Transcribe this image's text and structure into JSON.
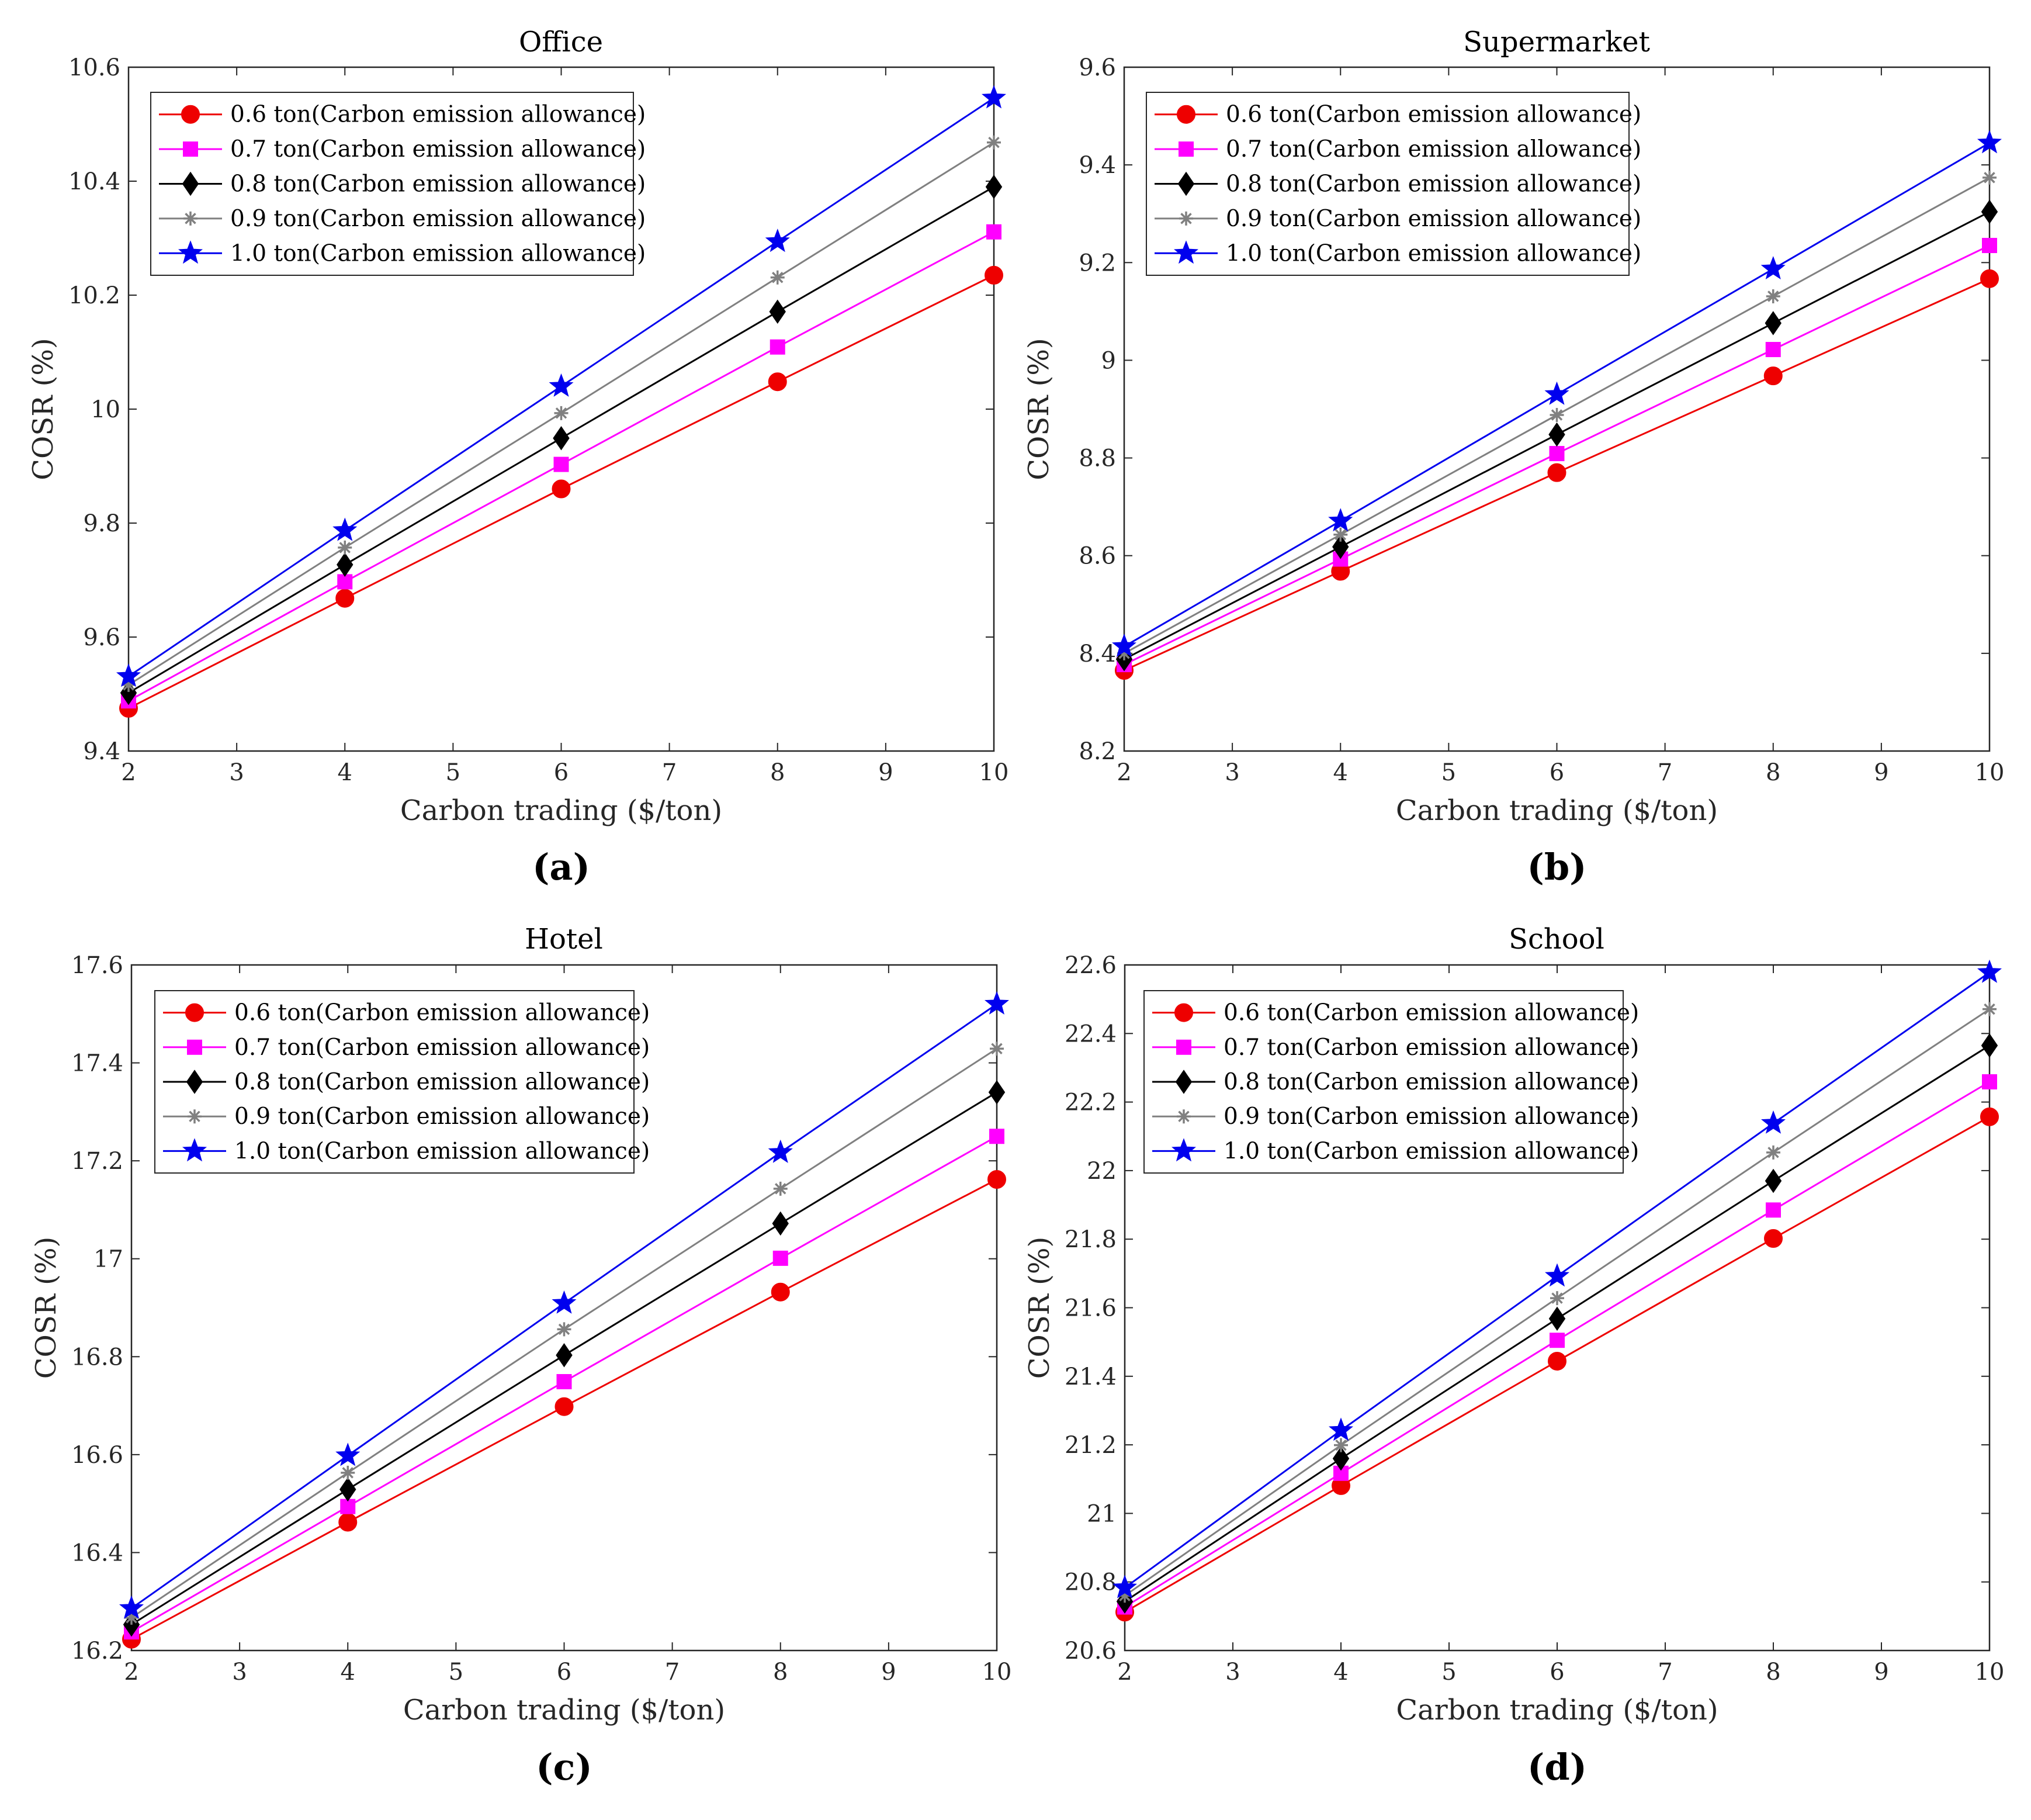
{
  "figure": {
    "panels": [
      "(a)",
      "(b)",
      "(c)",
      "(d)"
    ]
  },
  "colors": {
    "s06": "#ee0000",
    "s07": "#ff00ff",
    "s08": "#000000",
    "s09": "#808080",
    "s10": "#0000ee"
  },
  "chart_data": [
    {
      "type": "line",
      "panel_label": "(a)",
      "title": "Office",
      "xlabel": "Carbon trading ($/ton)",
      "ylabel": "COSR (%)",
      "xlim": [
        2,
        10
      ],
      "ylim": [
        9.4,
        10.6
      ],
      "xticks": [
        "2",
        "3",
        "4",
        "5",
        "6",
        "7",
        "8",
        "9",
        "10"
      ],
      "yticks": [
        "9.4",
        "9.6",
        "9.8",
        "10",
        "10.2",
        "10.4",
        "10.6"
      ],
      "legend_position": "top-left",
      "x": [
        2,
        4,
        6,
        8,
        10
      ],
      "series": [
        {
          "name": "0.6 ton(Carbon emission allowance)",
          "marker": "circle",
          "values": [
            9.475,
            9.668,
            9.86,
            10.048,
            10.235
          ]
        },
        {
          "name": "0.7 ton(Carbon emission allowance)",
          "marker": "square",
          "values": [
            9.488,
            9.697,
            9.903,
            10.109,
            10.311
          ]
        },
        {
          "name": "0.8 ton(Carbon emission allowance)",
          "marker": "diamond",
          "values": [
            9.502,
            9.727,
            9.949,
            10.171,
            10.39
          ]
        },
        {
          "name": "0.9 ton(Carbon emission allowance)",
          "marker": "asterisk",
          "values": [
            9.516,
            9.757,
            9.993,
            10.231,
            10.468
          ]
        },
        {
          "name": "1.0 ton(Carbon emission allowance)",
          "marker": "star",
          "values": [
            9.531,
            9.787,
            10.04,
            10.294,
            10.546
          ]
        }
      ]
    },
    {
      "type": "line",
      "panel_label": "(b)",
      "title": "Supermarket",
      "xlabel": "Carbon trading ($/ton)",
      "ylabel": "COSR (%)",
      "xlim": [
        2,
        10
      ],
      "ylim": [
        8.2,
        9.6
      ],
      "xticks": [
        "2",
        "3",
        "4",
        "5",
        "6",
        "7",
        "8",
        "9",
        "10"
      ],
      "yticks": [
        "8.2",
        "8.4",
        "8.6",
        "8.8",
        "9",
        "9.2",
        "9.4",
        "9.6"
      ],
      "legend_position": "top-left",
      "x": [
        2,
        4,
        6,
        8,
        10
      ],
      "series": [
        {
          "name": "0.6 ton(Carbon emission allowance)",
          "marker": "circle",
          "values": [
            8.365,
            8.568,
            8.77,
            8.968,
            9.167
          ]
        },
        {
          "name": "0.7 ton(Carbon emission allowance)",
          "marker": "square",
          "values": [
            8.377,
            8.593,
            8.809,
            9.022,
            9.235
          ]
        },
        {
          "name": "0.8 ton(Carbon emission allowance)",
          "marker": "diamond",
          "values": [
            8.388,
            8.618,
            8.848,
            9.076,
            9.304
          ]
        },
        {
          "name": "0.9 ton(Carbon emission allowance)",
          "marker": "asterisk",
          "values": [
            8.4,
            8.643,
            8.888,
            9.131,
            9.374
          ]
        },
        {
          "name": "1.0 ton(Carbon emission allowance)",
          "marker": "star",
          "values": [
            8.414,
            8.671,
            8.93,
            9.187,
            9.445
          ]
        }
      ]
    },
    {
      "type": "line",
      "panel_label": "(c)",
      "title": "Hotel",
      "xlabel": "Carbon trading ($/ton)",
      "ylabel": "COSR (%)",
      "xlim": [
        2,
        10
      ],
      "ylim": [
        16.2,
        17.6
      ],
      "xticks": [
        "2",
        "3",
        "4",
        "5",
        "6",
        "7",
        "8",
        "9",
        "10"
      ],
      "yticks": [
        "16.2",
        "16.4",
        "16.6",
        "16.8",
        "17",
        "17.2",
        "17.4",
        "17.6"
      ],
      "legend_position": "top-left",
      "x": [
        2,
        4,
        6,
        8,
        10
      ],
      "series": [
        {
          "name": "0.6 ton(Carbon emission allowance)",
          "marker": "circle",
          "values": [
            16.223,
            16.462,
            16.698,
            16.932,
            17.162
          ]
        },
        {
          "name": "0.7 ton(Carbon emission allowance)",
          "marker": "square",
          "values": [
            16.238,
            16.494,
            16.749,
            17.001,
            17.25
          ]
        },
        {
          "name": "0.8 ton(Carbon emission allowance)",
          "marker": "diamond",
          "values": [
            16.253,
            16.529,
            16.803,
            17.072,
            17.34
          ]
        },
        {
          "name": "0.9 ton(Carbon emission allowance)",
          "marker": "asterisk",
          "values": [
            16.267,
            16.563,
            16.856,
            17.143,
            17.429
          ]
        },
        {
          "name": "1.0 ton(Carbon emission allowance)",
          "marker": "star",
          "values": [
            16.286,
            16.598,
            16.909,
            17.217,
            17.52
          ]
        }
      ]
    },
    {
      "type": "line",
      "panel_label": "(d)",
      "title": "School",
      "xlabel": "Carbon trading ($/ton)",
      "ylabel": "COSR (%)",
      "xlim": [
        2,
        10
      ],
      "ylim": [
        20.6,
        22.6
      ],
      "xticks": [
        "2",
        "3",
        "4",
        "5",
        "6",
        "7",
        "8",
        "9",
        "10"
      ],
      "yticks": [
        "20.6",
        "20.8",
        "21",
        "21.2",
        "21.4",
        "21.6",
        "21.8",
        "22",
        "22.2",
        "22.4",
        "22.6"
      ],
      "legend_position": "top-left",
      "x": [
        2,
        4,
        6,
        8,
        10
      ],
      "series": [
        {
          "name": "0.6 ton(Carbon emission allowance)",
          "marker": "circle",
          "values": [
            20.712,
            21.081,
            21.444,
            21.802,
            22.157
          ]
        },
        {
          "name": "0.7 ton(Carbon emission allowance)",
          "marker": "square",
          "values": [
            20.727,
            21.117,
            21.505,
            21.885,
            22.259
          ]
        },
        {
          "name": "0.8 ton(Carbon emission allowance)",
          "marker": "diamond",
          "values": [
            20.743,
            21.16,
            21.568,
            21.97,
            22.365
          ]
        },
        {
          "name": "0.9 ton(Carbon emission allowance)",
          "marker": "asterisk",
          "values": [
            20.76,
            21.199,
            21.628,
            22.053,
            22.471
          ]
        },
        {
          "name": "1.0 ton(Carbon emission allowance)",
          "marker": "star",
          "values": [
            20.783,
            21.242,
            21.692,
            22.138,
            22.578
          ]
        }
      ]
    }
  ]
}
